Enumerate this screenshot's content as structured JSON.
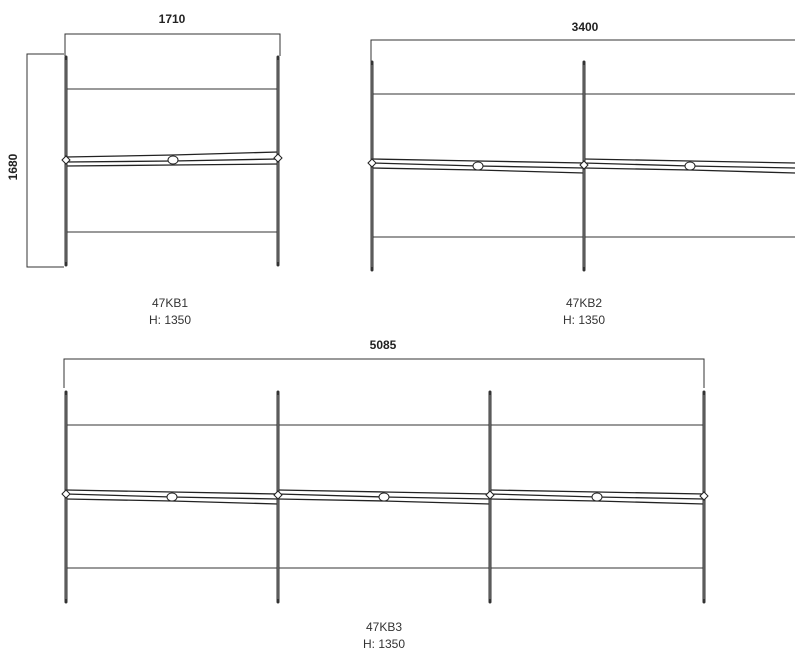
{
  "diagrams": [
    {
      "id": "kb1",
      "width_label": "1710",
      "height_label": "1680",
      "model": "47KB1",
      "height_caption": "H: 1350",
      "bays": 1
    },
    {
      "id": "kb2",
      "width_label": "3400",
      "model": "47KB2",
      "height_caption": "H: 1350",
      "bays": 2
    },
    {
      "id": "kb3",
      "width_label": "5085",
      "model": "47KB3",
      "height_caption": "H: 1350",
      "bays": 3
    }
  ]
}
